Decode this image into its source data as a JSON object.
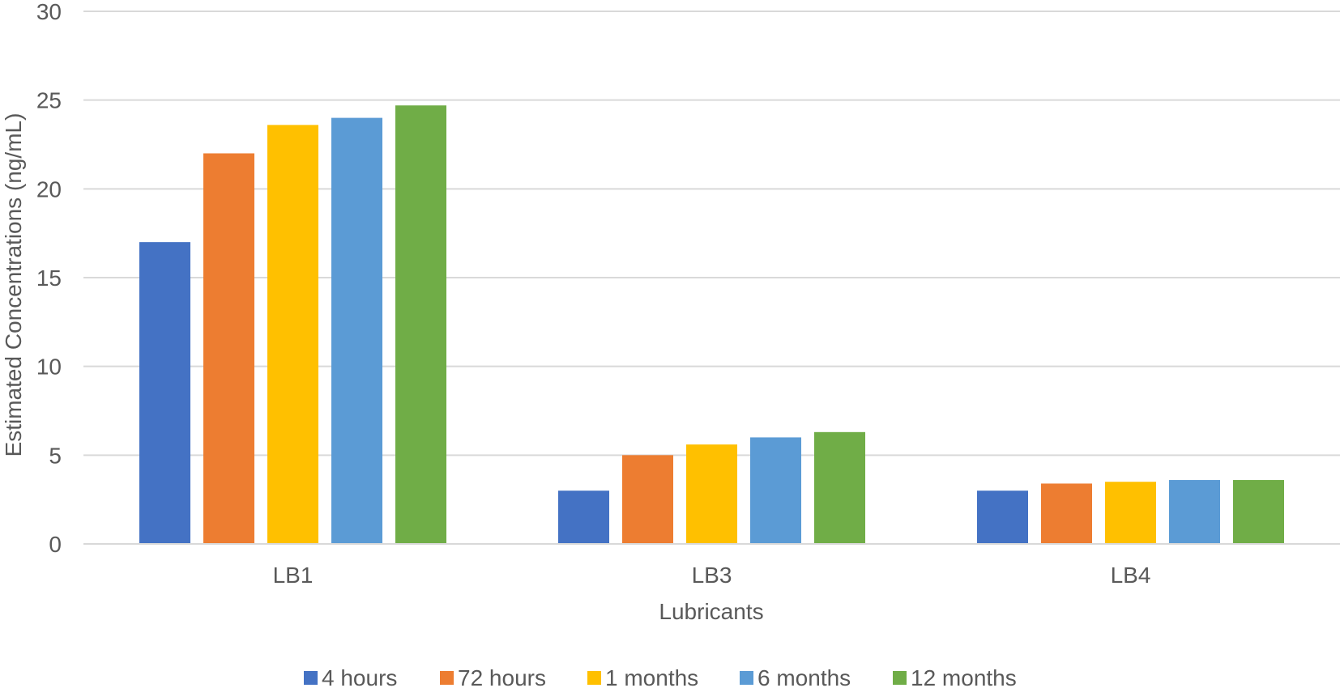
{
  "chart_data": {
    "type": "bar",
    "title": "",
    "xlabel": "Lubricants",
    "ylabel": "Estimated Concentrations (ng/mL)",
    "ylim": [
      0,
      30
    ],
    "yticks": [
      0,
      5,
      10,
      15,
      20,
      25,
      30
    ],
    "grid": true,
    "legend_position": "bottom",
    "categories": [
      "LB1",
      "LB3",
      "LB4"
    ],
    "series": [
      {
        "name": "4 hours",
        "color": "#4472C4",
        "values": [
          17.0,
          3.0,
          3.0
        ]
      },
      {
        "name": "72 hours",
        "color": "#ED7D31",
        "values": [
          22.0,
          5.0,
          3.4
        ]
      },
      {
        "name": "1 months",
        "color": "#FFC000",
        "values": [
          23.6,
          5.6,
          3.5
        ]
      },
      {
        "name": "6 months",
        "color": "#5B9BD5",
        "values": [
          24.0,
          6.0,
          3.6
        ]
      },
      {
        "name": "12 months",
        "color": "#70AD47",
        "values": [
          24.7,
          6.3,
          3.6
        ]
      }
    ]
  }
}
